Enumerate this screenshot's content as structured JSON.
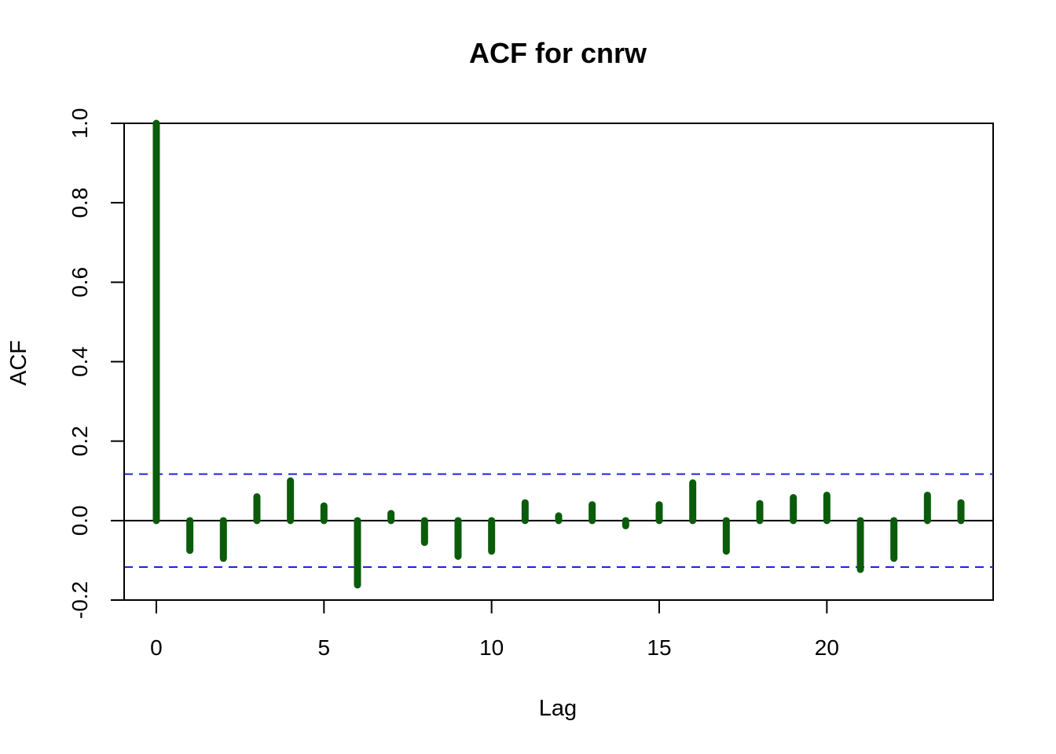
{
  "chart_data": {
    "type": "bar",
    "title": "ACF for cnrw",
    "xlabel": "Lag",
    "ylabel": "ACF",
    "xlim": [
      -0.96,
      24.96
    ],
    "ylim": [
      -0.2,
      1.0
    ],
    "x_ticks": [
      0,
      5,
      10,
      15,
      20
    ],
    "x_tick_labels": [
      "0",
      "5",
      "10",
      "15",
      "20"
    ],
    "y_ticks": [
      -0.2,
      0.0,
      0.2,
      0.4,
      0.6,
      0.8,
      1.0
    ],
    "y_tick_labels": [
      "-0.2",
      "0.0",
      "0.2",
      "0.4",
      "0.6",
      "0.8",
      "1.0"
    ],
    "lags": [
      0,
      1,
      2,
      3,
      4,
      5,
      6,
      7,
      8,
      9,
      10,
      11,
      12,
      13,
      14,
      15,
      16,
      17,
      18,
      19,
      20,
      21,
      22,
      23,
      24
    ],
    "values": [
      1.0,
      -0.075,
      -0.095,
      0.06,
      0.1,
      0.037,
      -0.162,
      0.018,
      -0.055,
      -0.09,
      -0.077,
      0.045,
      0.012,
      0.04,
      -0.013,
      0.04,
      0.095,
      -0.077,
      0.043,
      0.058,
      0.064,
      -0.123,
      -0.095,
      0.064,
      0.045
    ],
    "confidence_bound": 0.117,
    "bar_color": "#0a5c0a",
    "confidence_color": "#2020e0",
    "grid": false
  }
}
